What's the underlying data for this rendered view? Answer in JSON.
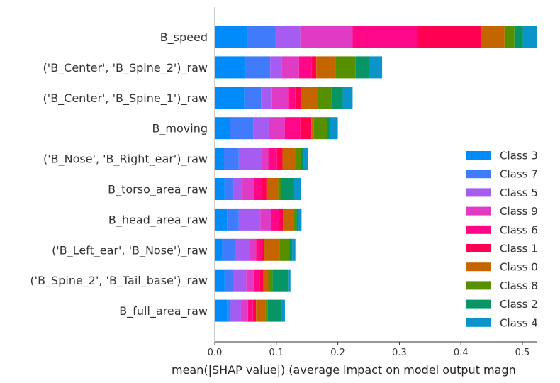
{
  "chart_data": {
    "type": "bar",
    "orientation": "horizontal",
    "stacked": true,
    "title": "",
    "xlabel": "mean(|SHAP value|) (average impact on model output magn",
    "ylabel": "",
    "xlim": [
      0,
      0.55
    ],
    "xticks": [
      "0.0",
      "0.1",
      "0.2",
      "0.3",
      "0.4",
      "0.5"
    ],
    "grid": false,
    "legend_position": "lower-right",
    "categories": [
      "B_speed",
      "('B_Center', 'B_Spine_2')_raw",
      "('B_Center', 'B_Spine_1')_raw",
      "B_moving",
      "('B_Nose', 'B_Right_ear')_raw",
      "B_torso_area_raw",
      "B_head_area_raw",
      "('B_Left_ear', 'B_Nose')_raw",
      "('B_Spine_2', 'B_Tail_base')_raw",
      "B_full_area_raw"
    ],
    "series": [
      {
        "name": "Class 3",
        "color": "#008bfb",
        "values": [
          0.054,
          0.05,
          0.048,
          0.025,
          0.015,
          0.016,
          0.02,
          0.012,
          0.016,
          0.02
        ]
      },
      {
        "name": "Class 7",
        "color": "#3f7bfb",
        "values": [
          0.045,
          0.04,
          0.027,
          0.038,
          0.024,
          0.014,
          0.019,
          0.021,
          0.015,
          0.006
        ]
      },
      {
        "name": "Class 5",
        "color": "#a65cf0",
        "values": [
          0.04,
          0.019,
          0.018,
          0.025,
          0.036,
          0.015,
          0.035,
          0.024,
          0.02,
          0.018
        ]
      },
      {
        "name": "Class 9",
        "color": "#df3bc4",
        "values": [
          0.085,
          0.028,
          0.026,
          0.026,
          0.012,
          0.019,
          0.018,
          0.01,
          0.012,
          0.01
        ]
      },
      {
        "name": "Class 6",
        "color": "#ff0787",
        "values": [
          0.106,
          0.02,
          0.012,
          0.025,
          0.014,
          0.011,
          0.012,
          0.008,
          0.01,
          0.008
        ]
      },
      {
        "name": "Class 1",
        "color": "#ff0053",
        "values": [
          0.102,
          0.008,
          0.009,
          0.018,
          0.009,
          0.009,
          0.007,
          0.005,
          0.006,
          0.005
        ]
      },
      {
        "name": "Class 0",
        "color": "#c46500",
        "values": [
          0.039,
          0.031,
          0.028,
          0.004,
          0.022,
          0.019,
          0.017,
          0.025,
          0.008,
          0.015
        ]
      },
      {
        "name": "Class 8",
        "color": "#568f00",
        "values": [
          0.016,
          0.033,
          0.022,
          0.021,
          0.008,
          0.005,
          0.005,
          0.015,
          0.007,
          0.004
        ]
      },
      {
        "name": "Class 2",
        "color": "#079566",
        "values": [
          0.014,
          0.021,
          0.018,
          0.005,
          0.003,
          0.021,
          0.002,
          0.006,
          0.025,
          0.023
        ]
      },
      {
        "name": "Class 4",
        "color": "#0b94c9",
        "values": [
          0.022,
          0.022,
          0.016,
          0.013,
          0.008,
          0.011,
          0.006,
          0.005,
          0.004,
          0.005
        ]
      }
    ]
  }
}
